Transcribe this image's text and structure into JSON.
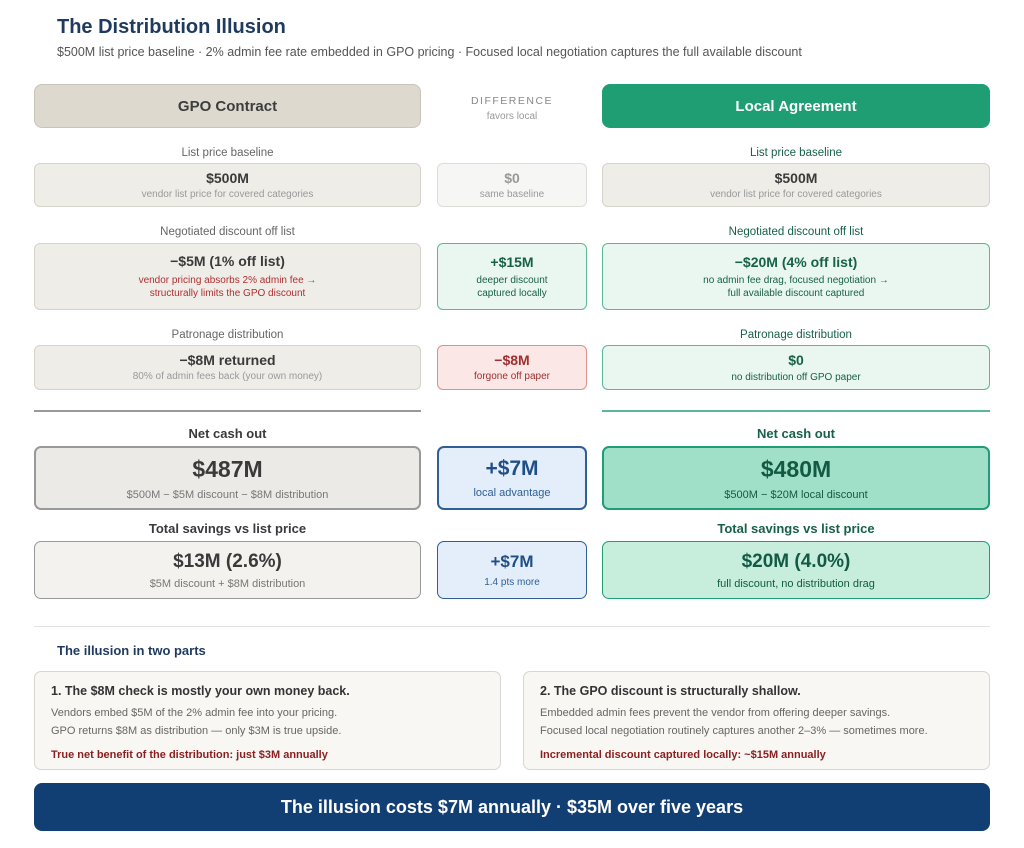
{
  "header": {
    "title": "The Distribution Illusion",
    "subtitle": "$500M list price baseline · 2% admin fee rate embedded in GPO pricing · Focused local negotiation captures the full available discount"
  },
  "columns": {
    "gpo_title": "GPO Contract",
    "local_title": "Local Agreement",
    "diff_title": "DIFFERENCE",
    "diff_sub": "favors local"
  },
  "rows": {
    "baseline": {
      "label": "List price baseline",
      "gpo_value": "$500M",
      "gpo_sub": "vendor list price for covered categories",
      "diff_value": "$0",
      "diff_sub": "same baseline",
      "local_value": "$500M",
      "local_sub": "vendor list price for covered categories"
    },
    "discount": {
      "label": "Negotiated discount off list",
      "gpo_value": "−$5M (1% off list)",
      "gpo_sub1": "vendor pricing absorbs 2% admin fee →",
      "gpo_sub2": "structurally limits the GPO discount",
      "diff_value": "+$15M",
      "diff_sub1": "deeper discount",
      "diff_sub2": "captured locally",
      "local_value": "−$20M (4% off list)",
      "local_sub1": "no admin fee drag, focused negotiation →",
      "local_sub2": "full available discount captured"
    },
    "patronage": {
      "label": "Patronage distribution",
      "gpo_value": "−$8M returned",
      "gpo_sub": "80% of admin fees back (your own money)",
      "diff_value": "−$8M",
      "diff_sub": "forgone off paper",
      "local_value": "$0",
      "local_sub": "no distribution off GPO paper"
    }
  },
  "net": {
    "label": "Net cash out",
    "gpo_value": "$487M",
    "gpo_sub": "$500M − $5M discount − $8M distribution",
    "diff_value": "+$7M",
    "diff_sub": "local advantage",
    "local_value": "$480M",
    "local_sub": "$500M − $20M local discount"
  },
  "savings": {
    "label": "Total savings vs list price",
    "gpo_value": "$13M (2.6%)",
    "gpo_sub": "$5M discount + $8M distribution",
    "diff_value": "+$7M",
    "diff_sub": "1.4 pts more",
    "local_value": "$20M (4.0%)",
    "local_sub": "full discount, no distribution drag"
  },
  "illusion": {
    "title": "The illusion in two parts",
    "part1": {
      "title": "1. The $8M check is mostly your own money back.",
      "line1": "Vendors embed $5M of the 2% admin fee into your pricing.",
      "line2": "GPO returns $8M as distribution — only $3M is true upside.",
      "bottom": "True net benefit of the distribution: just $3M annually"
    },
    "part2": {
      "title": "2. The GPO discount is structurally shallow.",
      "line1": "Embedded admin fees prevent the vendor from offering deeper savings.",
      "line2": "Focused local negotiation routinely captures another 2–3% — sometimes more.",
      "bottom": "Incremental discount captured locally: ~$15M annually"
    }
  },
  "banner": "The illusion costs $7M annually · $35M over five years",
  "colors": {
    "navy": "#1e3a5f",
    "green": "#1f9e74",
    "banner": "#123f73",
    "red": "#a03030"
  }
}
